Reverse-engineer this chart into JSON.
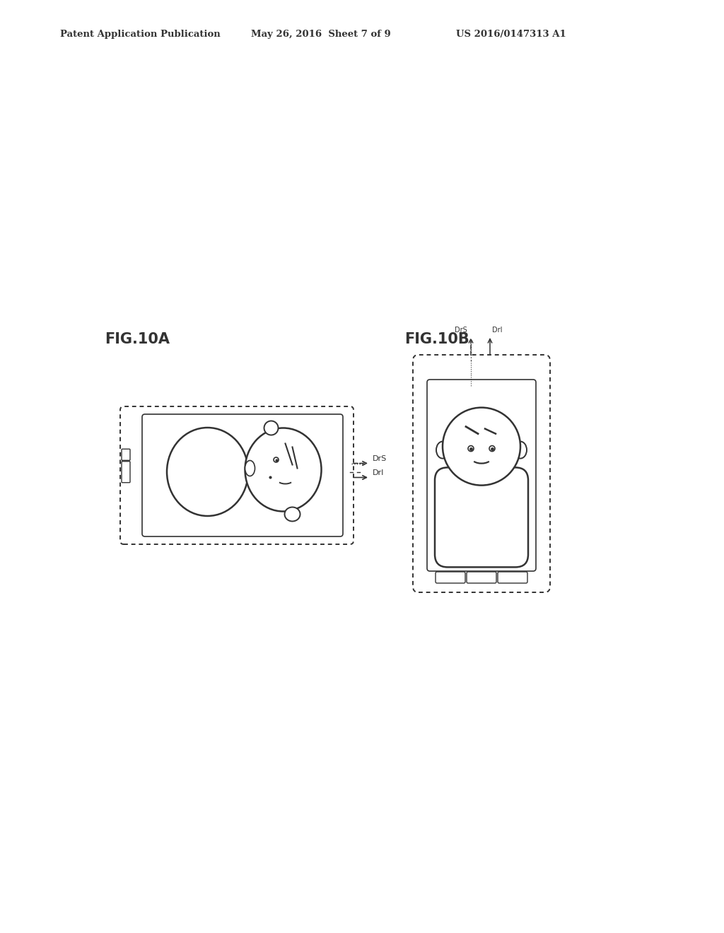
{
  "header_left": "Patent Application Publication",
  "header_mid": "May 26, 2016  Sheet 7 of 9",
  "header_right": "US 2016/0147313 A1",
  "fig_a_label": "FIG.10A",
  "fig_b_label": "FIG.10B",
  "label_DrS": "DrS",
  "label_DrI": "DrI",
  "bg_color": "#ffffff",
  "line_color": "#333333",
  "dot_line_color": "#666666"
}
